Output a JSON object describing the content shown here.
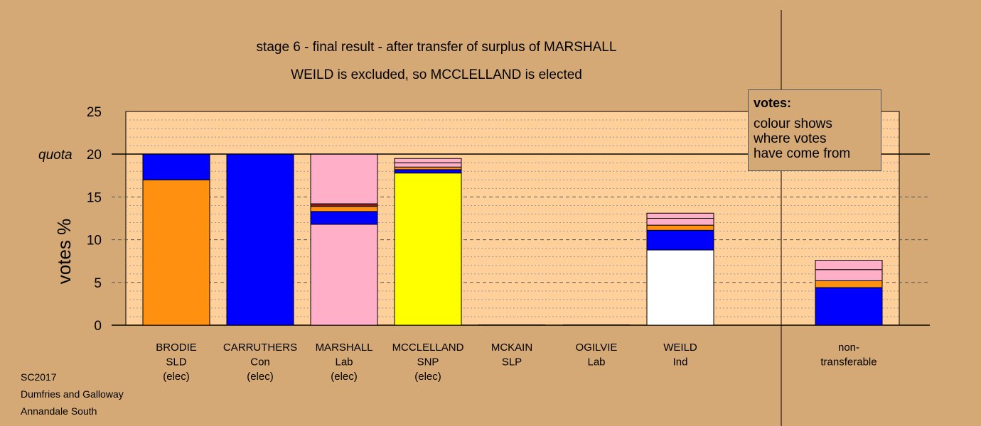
{
  "chart_data": {
    "type": "bar",
    "stacked": true,
    "title": "stage 6 - final result - after transfer of surplus of MARSHALL",
    "subtitle": "WEILD is excluded, so MCCLELLAND is elected",
    "ylabel": "votes %",
    "xlabel": "",
    "ylim": [
      0,
      25
    ],
    "yticks": [
      0,
      5,
      10,
      15,
      20,
      25
    ],
    "quota": 20,
    "quota_label": "quota",
    "grid": "dashed horizontal",
    "categories": [
      {
        "name": "BRODIE",
        "party": "SLD",
        "status": "(elec)",
        "segments": [
          {
            "color": "#ff9010",
            "value": 17.0
          },
          {
            "color": "#0000ff",
            "value": 3.0
          }
        ]
      },
      {
        "name": "CARRUTHERS",
        "party": "Con",
        "status": "(elec)",
        "segments": [
          {
            "color": "#0000ff",
            "value": 20.0
          }
        ]
      },
      {
        "name": "MARSHALL",
        "party": "Lab",
        "status": "(elec)",
        "segments": [
          {
            "color": "#ffb0c8",
            "value": 11.8
          },
          {
            "color": "#0000ff",
            "value": 1.5
          },
          {
            "color": "#ff9010",
            "value": 0.6
          },
          {
            "color": "#8b1a1a",
            "value": 0.3
          },
          {
            "color": "#ffb0c8",
            "value": 5.8
          }
        ]
      },
      {
        "name": "MCCLELLAND",
        "party": "SNP",
        "status": "(elec)",
        "segments": [
          {
            "color": "#ffff00",
            "value": 17.8
          },
          {
            "color": "#0000ff",
            "value": 0.4
          },
          {
            "color": "#ff9010",
            "value": 0.3
          },
          {
            "color": "#ffb0c8",
            "value": 0.5
          },
          {
            "color": "#ffb0c8",
            "value": 0.5
          }
        ]
      },
      {
        "name": "MCKAIN",
        "party": "SLP",
        "status": "",
        "segments": []
      },
      {
        "name": "OGILVIE",
        "party": "Lab",
        "status": "",
        "segments": []
      },
      {
        "name": "WEILD",
        "party": "Ind",
        "status": "",
        "segments": [
          {
            "color": "#ffffff",
            "value": 8.8
          },
          {
            "color": "#0000ff",
            "value": 2.3
          },
          {
            "color": "#ff9010",
            "value": 0.6
          },
          {
            "color": "#ffb0c8",
            "value": 0.8
          },
          {
            "color": "#ffb0c8",
            "value": 0.6
          }
        ]
      },
      {
        "name": "non-",
        "party": "transferable",
        "status": "",
        "segments": [
          {
            "color": "#0000ff",
            "value": 4.4
          },
          {
            "color": "#ff9010",
            "value": 0.8
          },
          {
            "color": "#ffb0c8",
            "value": 1.3
          },
          {
            "color": "#ffb0c8",
            "value": 1.1
          }
        ]
      }
    ],
    "legend": {
      "title": "votes:",
      "text": "colour shows\nwhere votes\nhave come from",
      "position": "top-right"
    }
  },
  "footer": [
    "SC2017",
    "Dumfries and Galloway",
    "Annandale South"
  ],
  "colors": {
    "background": "#d4a976",
    "plot_area": "#ffd09a",
    "orange": "#ff9010",
    "blue": "#0000ff",
    "pink": "#ffb0c8",
    "yellow": "#ffff00",
    "white": "#ffffff"
  }
}
